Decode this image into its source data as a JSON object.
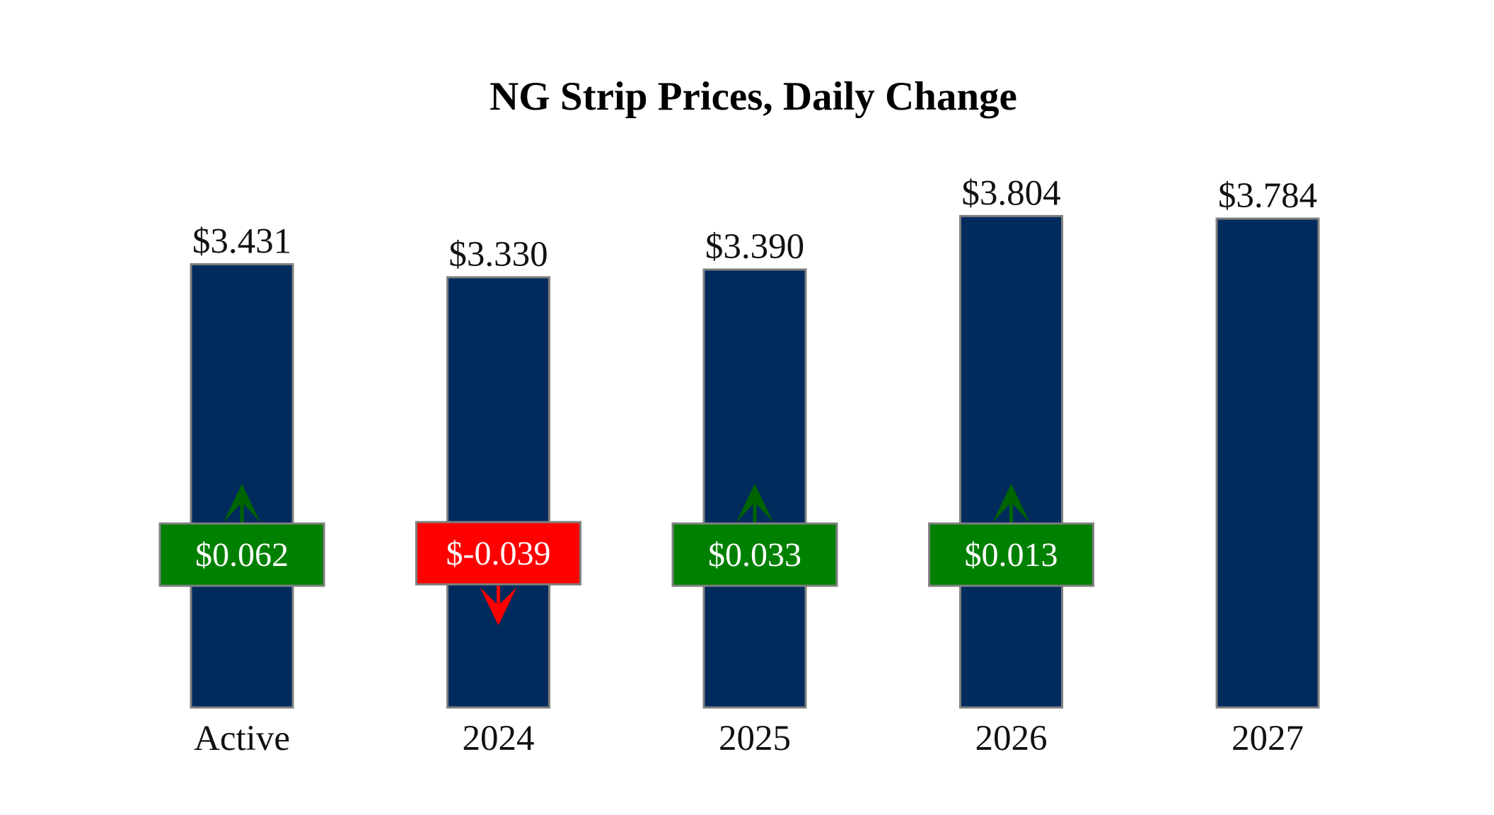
{
  "chart_data": {
    "type": "bar",
    "title": "NG Strip Prices, Daily Change",
    "categories": [
      "Active",
      "2024",
      "2025",
      "2026",
      "2027"
    ],
    "values": [
      3.431,
      3.33,
      3.39,
      3.804,
      3.784
    ],
    "value_labels": [
      "$3.431",
      "$3.330",
      "$3.390",
      "$3.804",
      "$3.784"
    ],
    "changes": [
      0.062,
      -0.039,
      0.033,
      0.013,
      null
    ],
    "change_labels": [
      "$0.062",
      "$-0.039",
      "$0.033",
      "$0.013",
      ""
    ],
    "xlabel": "",
    "ylabel": "",
    "grid": false,
    "colors": {
      "bar": "#002b5c",
      "bar_edge": "#7f7f7f",
      "up": "#008000",
      "down": "#ff0000",
      "box_edge": "#7f7f7f",
      "up_arrow": "#006400",
      "down_arrow": "#ff0000"
    }
  }
}
